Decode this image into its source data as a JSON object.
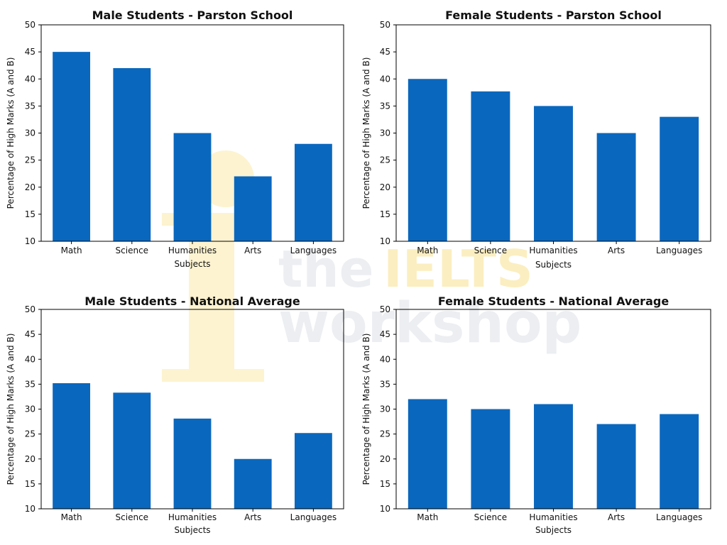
{
  "colors": {
    "bar": "#0a67be",
    "axis": "#000000",
    "watermark_logo": "#fdf3d0",
    "watermark_text": "#eceef1",
    "watermark_accent": "#fbeec0"
  },
  "watermark": {
    "line1": "the",
    "line1_accent": "IELTS",
    "line2": "workshop"
  },
  "chart_data": [
    {
      "type": "bar",
      "title": "Male Students - Parston School",
      "xlabel": "Subjects",
      "ylabel": "Percentage of High Marks (A and B)",
      "categories": [
        "Math",
        "Science",
        "Humanities",
        "Arts",
        "Languages"
      ],
      "values": [
        45,
        42,
        30,
        22,
        28
      ],
      "ylim": [
        10,
        50
      ],
      "yticks": [
        "10",
        "15",
        "20",
        "25",
        "30",
        "35",
        "40",
        "45",
        "50"
      ]
    },
    {
      "type": "bar",
      "title": "Female Students - Parston School",
      "xlabel": "Subjects",
      "ylabel": "Percentage of High Marks (A and B)",
      "categories": [
        "Math",
        "Science",
        "Humanities",
        "Arts",
        "Languages"
      ],
      "values": [
        40,
        37.7,
        35,
        30,
        33
      ],
      "ylim": [
        10,
        50
      ],
      "yticks": [
        "10",
        "15",
        "20",
        "25",
        "30",
        "35",
        "40",
        "45",
        "50"
      ]
    },
    {
      "type": "bar",
      "title": "Male Students - National Average",
      "xlabel": "Subjects",
      "ylabel": "Percentage of High Marks (A and B)",
      "categories": [
        "Math",
        "Science",
        "Humanities",
        "Arts",
        "Languages"
      ],
      "values": [
        35.2,
        33.3,
        28.1,
        20,
        25.2
      ],
      "ylim": [
        10,
        50
      ],
      "yticks": [
        "10",
        "15",
        "20",
        "25",
        "30",
        "35",
        "40",
        "45",
        "50"
      ]
    },
    {
      "type": "bar",
      "title": "Female Students - National Average",
      "xlabel": "Subjects",
      "ylabel": "Percentage of High Marks (A and B)",
      "categories": [
        "Math",
        "Science",
        "Humanities",
        "Arts",
        "Languages"
      ],
      "values": [
        32,
        30,
        31,
        27,
        29
      ],
      "ylim": [
        10,
        50
      ],
      "yticks": [
        "10",
        "15",
        "20",
        "25",
        "30",
        "35",
        "40",
        "45",
        "50"
      ]
    }
  ]
}
